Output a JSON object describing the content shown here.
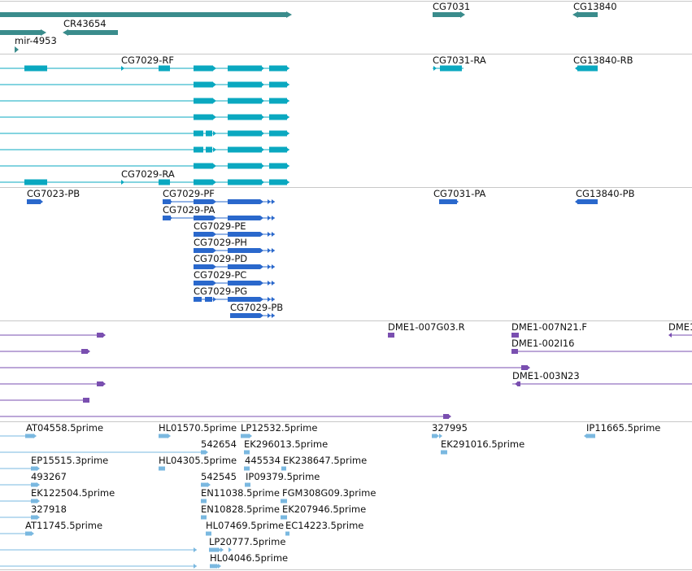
{
  "colors": {
    "gene": "#3a8c8c",
    "transcript": "#0aa8c0",
    "protein": "#2a68cc",
    "clone": "#7a4fb0",
    "est": "#7ab8e0",
    "separator": "#c8c8c8",
    "text": "#111111"
  },
  "tracks": {
    "genes": {
      "labels": [
        "CR43654",
        "mir-4953",
        "CG7031",
        "CG13840"
      ]
    },
    "transcripts": {
      "labels": [
        "CG7029-RF",
        "CG7029-RA",
        "CG7031-RA",
        "CG13840-RB"
      ]
    },
    "proteins": {
      "labels": [
        "CG7023-PB",
        "CG7029-PF",
        "CG7029-PA",
        "CG7029-PE",
        "CG7029-PH",
        "CG7029-PD",
        "CG7029-PC",
        "CG7029-PG",
        "CG7029-PB",
        "CG7031-PA",
        "CG13840-PB"
      ]
    },
    "clones": {
      "labels": [
        "DME1-007G03.R",
        "DME1-007N21.F",
        "DME1-002I16",
        "DME1-003N23",
        "DME1"
      ]
    },
    "ests": {
      "labels": [
        "AT04558.5prime",
        "HL01570.5prime",
        "LP12532.5prime",
        "327995",
        "IP11665.5prime",
        "542654",
        "EK296013.5prime",
        "EK291016.5prime",
        "EP15515.3prime",
        "HL04305.5prime",
        "445534",
        "EK238647.5prime",
        "493267",
        "542545",
        "IP09379.5prime",
        "EK122504.5prime",
        "EN11038.5prime",
        "FGM308G09.3prime",
        "327918",
        "EN10828.5prime",
        "EK207946.5prime",
        "AT11745.5prime",
        "HL07469.5prime",
        "EC14223.5prime",
        "LP20777.5prime",
        "HL04046.5prime"
      ]
    }
  }
}
